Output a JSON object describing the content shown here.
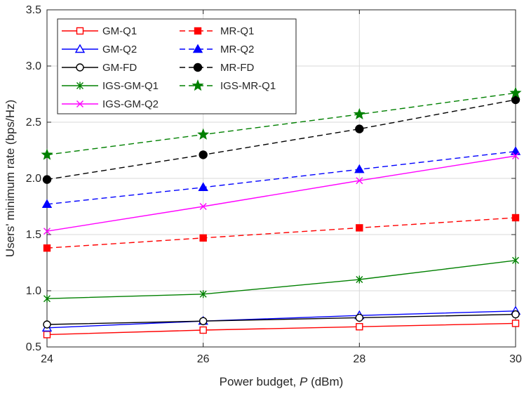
{
  "chart_data": {
    "type": "line",
    "title": "",
    "xlabel_prefix": "Power budget, ",
    "xlabel_var": "P",
    "xlabel_suffix": " (dBm)",
    "ylabel": "Users' minimum rate (bps/Hz)",
    "xlim": [
      24,
      30
    ],
    "ylim": [
      0.5,
      3.5
    ],
    "x": [
      24,
      26,
      28,
      30
    ],
    "xticks": [
      "24",
      "26",
      "28",
      "30"
    ],
    "yticks": [
      "0.5",
      "1.0",
      "1.5",
      "2.0",
      "2.5",
      "3.0",
      "3.5"
    ],
    "ytick_values": [
      0.5,
      1.0,
      1.5,
      2.0,
      2.5,
      3.0,
      3.5
    ],
    "xtick_values": [
      24,
      26,
      28,
      30
    ],
    "grid": true,
    "legend_position": "top-left",
    "series": [
      {
        "name": "GM-Q1",
        "values": [
          0.61,
          0.65,
          0.68,
          0.71
        ],
        "color": "#ff0000",
        "dash": "solid",
        "marker": "square-open"
      },
      {
        "name": "MR-Q1",
        "values": [
          1.38,
          1.47,
          1.56,
          1.65
        ],
        "color": "#ff0000",
        "dash": "dashed",
        "marker": "square-filled"
      },
      {
        "name": "GM-Q2",
        "values": [
          0.67,
          0.73,
          0.78,
          0.82
        ],
        "color": "#0000ff",
        "dash": "solid",
        "marker": "triangle-open"
      },
      {
        "name": "MR-Q2",
        "values": [
          1.77,
          1.92,
          2.08,
          2.24
        ],
        "color": "#0000ff",
        "dash": "dashed",
        "marker": "triangle-filled"
      },
      {
        "name": "GM-FD",
        "values": [
          0.7,
          0.73,
          0.76,
          0.79
        ],
        "color": "#000000",
        "dash": "solid",
        "marker": "circle-open"
      },
      {
        "name": "MR-FD",
        "values": [
          1.99,
          2.21,
          2.44,
          2.7
        ],
        "color": "#000000",
        "dash": "dashed",
        "marker": "circle-filled"
      },
      {
        "name": "IGS-GM-Q1",
        "values": [
          0.93,
          0.97,
          1.1,
          1.27
        ],
        "color": "#008000",
        "dash": "solid",
        "marker": "asterisk"
      },
      {
        "name": "IGS-MR-Q1",
        "values": [
          2.21,
          2.39,
          2.57,
          2.76
        ],
        "color": "#008000",
        "dash": "dashed",
        "marker": "star-filled"
      },
      {
        "name": "IGS-GM-Q2",
        "values": [
          1.53,
          1.75,
          1.98,
          2.2
        ],
        "color": "#ff00ff",
        "dash": "solid",
        "marker": "x"
      }
    ]
  }
}
